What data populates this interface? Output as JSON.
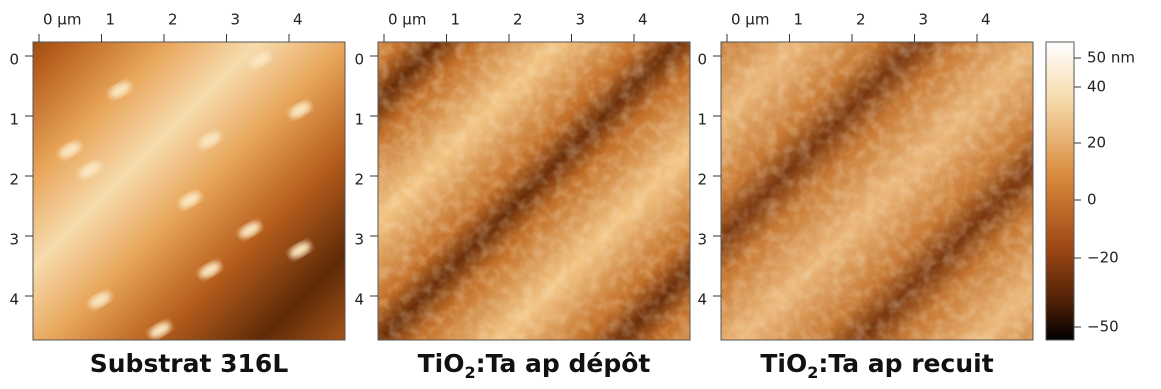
{
  "panels": [
    {
      "x_ticks": [
        "0 μm",
        "1",
        "2",
        "3",
        "4"
      ],
      "y_ticks": [
        "0",
        "1",
        "2",
        "3",
        "4"
      ],
      "caption": [
        {
          "text": "Substrat 316L"
        }
      ]
    },
    {
      "x_ticks": [
        "0 μm",
        "1",
        "2",
        "3",
        "4"
      ],
      "y_ticks": [
        "0",
        "1",
        "2",
        "3",
        "4"
      ],
      "caption": [
        {
          "text": "TiO"
        },
        {
          "text": "2",
          "sub": true
        },
        {
          "text": ":Ta ap dépôt"
        }
      ]
    },
    {
      "x_ticks": [
        "0 μm",
        "1",
        "2",
        "3",
        "4"
      ],
      "y_ticks": [
        "0",
        "1",
        "2",
        "3",
        "4"
      ],
      "caption": [
        {
          "text": "TiO"
        },
        {
          "text": "2",
          "sub": true
        },
        {
          "text": ":Ta ap recuit"
        }
      ]
    }
  ],
  "colorbar": {
    "ticks": [
      "50 nm",
      "40",
      "20",
      "0",
      "−20",
      "−50"
    ]
  }
}
